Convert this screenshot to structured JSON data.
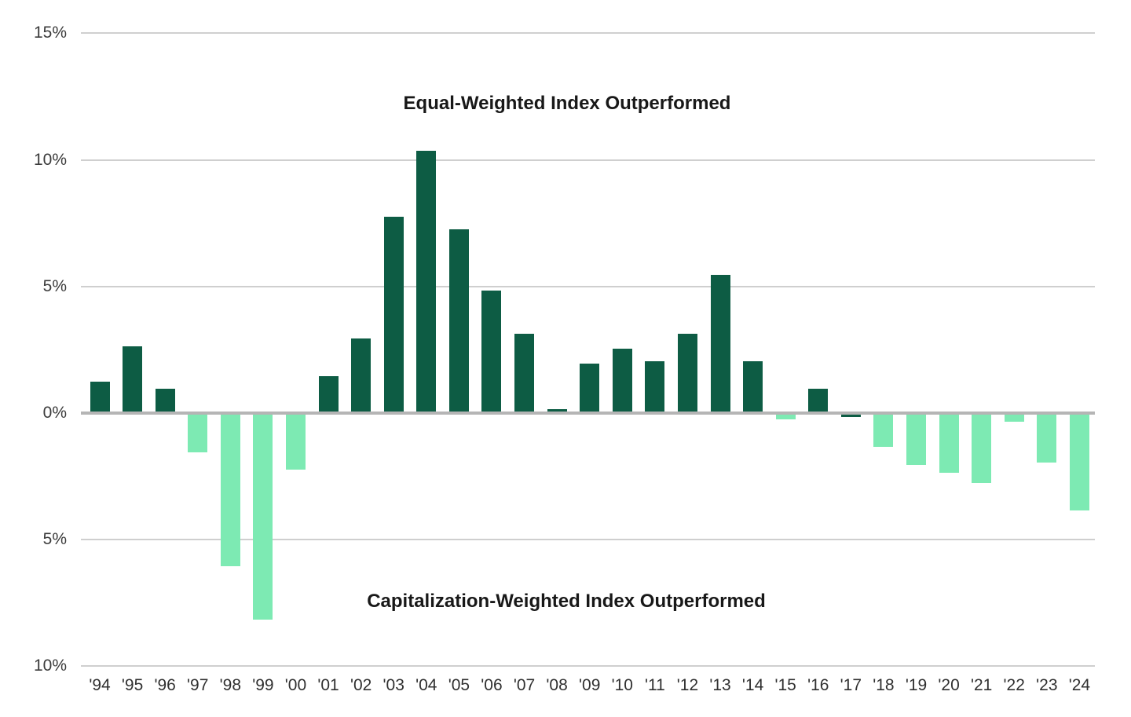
{
  "chart_data": {
    "type": "bar",
    "categories": [
      "'94",
      "'95",
      "'96",
      "'97",
      "'98",
      "'99",
      "'00",
      "'01",
      "'02",
      "'03",
      "'04",
      "'05",
      "'06",
      "'07",
      "'08",
      "'09",
      "'10",
      "'11",
      "'12",
      "'13",
      "'14",
      "'15",
      "'16",
      "'17",
      "'18",
      "'19",
      "'20",
      "'21",
      "'22",
      "'23",
      "'24"
    ],
    "values": [
      1.2,
      2.6,
      0.9,
      -1.5,
      -6.0,
      -8.1,
      -2.2,
      1.4,
      2.9,
      7.7,
      10.3,
      7.2,
      4.8,
      3.1,
      0.1,
      1.9,
      2.5,
      2.0,
      3.1,
      5.4,
      2.0,
      -0.2,
      0.9,
      -0.1,
      -1.3,
      -2.0,
      -2.3,
      -2.7,
      -0.3,
      -1.9,
      -3.8
    ],
    "unit": "%",
    "annotations": [
      {
        "text": "Equal-Weighted Index Outperformed",
        "region": "positive"
      },
      {
        "text": "Capitalization-Weighted Index Outperformed",
        "region": "negative"
      }
    ],
    "y_ticks": [
      {
        "label": "15%",
        "value": 15
      },
      {
        "label": "10%",
        "value": 10
      },
      {
        "label": "5%",
        "value": 5
      },
      {
        "label": "0%",
        "value": 0
      },
      {
        "label": "5%",
        "value": -5
      },
      {
        "label": "10%",
        "value": -10
      }
    ],
    "ylim": [
      -10,
      15
    ],
    "grid": true,
    "legend": "none",
    "colors": {
      "positive": "#0d5c44",
      "negative": "#7deab3",
      "gridline": "#cfcfcf",
      "zero_line": "#b5b5b5"
    },
    "color_overrides": {
      "'17": "positive"
    }
  }
}
